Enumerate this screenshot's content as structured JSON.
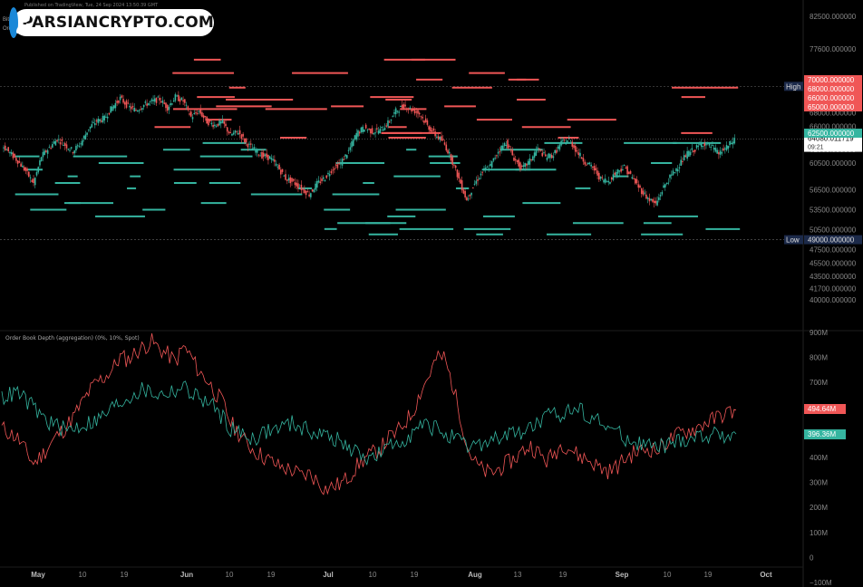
{
  "header": {
    "published": "Published on TradingView, Tue, 24 Sep 2024 13:50:39 GMT",
    "symbol_short_1": "Bit",
    "symbol_short_2": "Ord"
  },
  "logo": {
    "text": "PARSIANCRYPTO.COM"
  },
  "indicator_title": "Order Book Depth (aggregation) (0%, 10%, Spot)",
  "colors": {
    "red": "#f05656",
    "teal": "#35b5a0",
    "axis_text": "#888888",
    "high_low_label_bg": "#1c2a4a",
    "last_label_bg": "#ffffff"
  },
  "chart_data": [
    {
      "type": "line",
      "title": "",
      "x_categories_label": [
        "May",
        "10",
        "19",
        "Jun",
        "10",
        "19",
        "Jul",
        "10",
        "19",
        "Aug",
        "13",
        "19",
        "Sep",
        "10",
        "19",
        "Oct"
      ],
      "ylim": [
        40500,
        82500
      ],
      "yticks": [
        "82500.000000",
        "77600.000000",
        "70000.000000",
        "68000.000000",
        "66000.000000",
        "65000.000000",
        "62500.000000",
        "60500.000000",
        "56500.000000",
        "53500.000000",
        "50500.000000",
        "47500.000000",
        "45500.000000",
        "43500.000000",
        "41700.000000",
        "40000.000000"
      ],
      "price_series": [
        63200,
        62000,
        60800,
        59300,
        57400,
        61500,
        62800,
        64100,
        63200,
        62300,
        63500,
        65700,
        66800,
        67200,
        68900,
        70200,
        69000,
        68400,
        69200,
        69700,
        70100,
        68800,
        70400,
        69800,
        67400,
        68300,
        66700,
        66200,
        66600,
        64700,
        65200,
        63500,
        62500,
        61600,
        61300,
        59900,
        58200,
        57600,
        56700,
        55800,
        57400,
        58300,
        59700,
        60500,
        62300,
        64900,
        65800,
        65200,
        65400,
        66500,
        68300,
        69100,
        68500,
        67900,
        66100,
        64700,
        63700,
        61300,
        58100,
        54900,
        57400,
        59200,
        60100,
        62300,
        63600,
        61200,
        59600,
        60800,
        62700,
        61400,
        61700,
        63500,
        64000,
        62200,
        60700,
        59800,
        58100,
        57800,
        59200,
        59900,
        58300,
        56600,
        55200,
        54300,
        56900,
        58700,
        60300,
        61900,
        62600,
        63500,
        63000,
        61900,
        62800,
        64080
      ],
      "annotations": {
        "high_label": "High",
        "high_value": "71997.023438",
        "low_label": "Low",
        "low_value": "49000.000000",
        "last_price": "64080.011719",
        "countdown": "09:21",
        "red_levels": [
          "70000.000000",
          "68000.000000",
          "66000.000000",
          "65000.000000"
        ],
        "teal_level": "62500.000000"
      },
      "orderbook_ask_levels": [
        76000,
        74000,
        73000,
        71800,
        70400,
        70000,
        69000,
        68600,
        67000,
        65900,
        65000,
        64300
      ],
      "orderbook_bid_levels": [
        63500,
        62500,
        61500,
        60500,
        59500,
        58500,
        57500,
        56700,
        55800,
        54500,
        53500,
        52500,
        51500,
        50600,
        49800
      ]
    },
    {
      "type": "line",
      "title": "Order Book Depth (aggregation) (0%, 10%, Spot)",
      "ylim": [
        -100,
        900
      ],
      "yticks": [
        "900M",
        "800M",
        "700M",
        "600M",
        "500M",
        "400M",
        "300M",
        "200M",
        "100M",
        "0",
        "−100M"
      ],
      "series": [
        {
          "name": "",
          "color": "#f05656",
          "last_label": "494.64M",
          "values": [
            420,
            400,
            380,
            330,
            280,
            310,
            350,
            390,
            420,
            460,
            510,
            560,
            600,
            620,
            650,
            700,
            690,
            720,
            740,
            760,
            730,
            710,
            680,
            740,
            700,
            640,
            610,
            560,
            520,
            440,
            400,
            360,
            330,
            310,
            290,
            270,
            260,
            250,
            230,
            240,
            210,
            180,
            190,
            200,
            230,
            270,
            300,
            320,
            340,
            380,
            400,
            440,
            480,
            560,
            620,
            690,
            700,
            600,
            480,
            340,
            280,
            250,
            240,
            260,
            280,
            300,
            330,
            350,
            320,
            290,
            320,
            360,
            340,
            310,
            300,
            280,
            260,
            250,
            270,
            300,
            320,
            330,
            340,
            330,
            360,
            380,
            400,
            410,
            420,
            440,
            450,
            470,
            480,
            490
          ]
        },
        {
          "name": "",
          "color": "#35b5a0",
          "last_label": "396.36M",
          "values": [
            540,
            550,
            560,
            530,
            500,
            470,
            440,
            430,
            410,
            420,
            430,
            440,
            450,
            470,
            500,
            520,
            540,
            560,
            570,
            560,
            550,
            560,
            570,
            580,
            560,
            540,
            520,
            500,
            460,
            420,
            400,
            390,
            380,
            400,
            410,
            420,
            430,
            440,
            420,
            410,
            400,
            390,
            380,
            360,
            340,
            320,
            310,
            300,
            320,
            340,
            360,
            380,
            400,
            420,
            430,
            420,
            400,
            380,
            360,
            340,
            350,
            360,
            370,
            380,
            390,
            400,
            410,
            420,
            440,
            460,
            470,
            480,
            490,
            500,
            480,
            460,
            440,
            420,
            400,
            380,
            370,
            360,
            350,
            340,
            350,
            360,
            370,
            380,
            385,
            390,
            392,
            394,
            395,
            396
          ]
        }
      ]
    }
  ]
}
